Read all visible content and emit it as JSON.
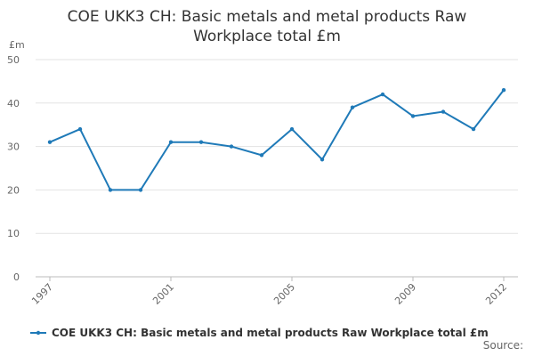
{
  "chart_data": {
    "type": "line",
    "title": "COE UKK3 CH: Basic metals and metal products Raw Workplace total £m",
    "y_label": "£m",
    "source": "Source:",
    "categories": [
      "1997",
      null,
      null,
      null,
      "2001",
      null,
      null,
      null,
      "2005",
      null,
      null,
      null,
      "2009",
      null,
      null,
      "2012"
    ],
    "series": [
      {
        "name": "COE UKK3 CH: Basic metals and metal products Raw Workplace total £m",
        "color": "#1f7ab8",
        "values": [
          31,
          34,
          20,
          20,
          31,
          31,
          30,
          28,
          34,
          27,
          39,
          42,
          37,
          38,
          34,
          43
        ]
      }
    ],
    "ylim": [
      0,
      50
    ],
    "yticks": [
      0,
      10,
      20,
      30,
      40,
      50
    ],
    "grid": true
  }
}
